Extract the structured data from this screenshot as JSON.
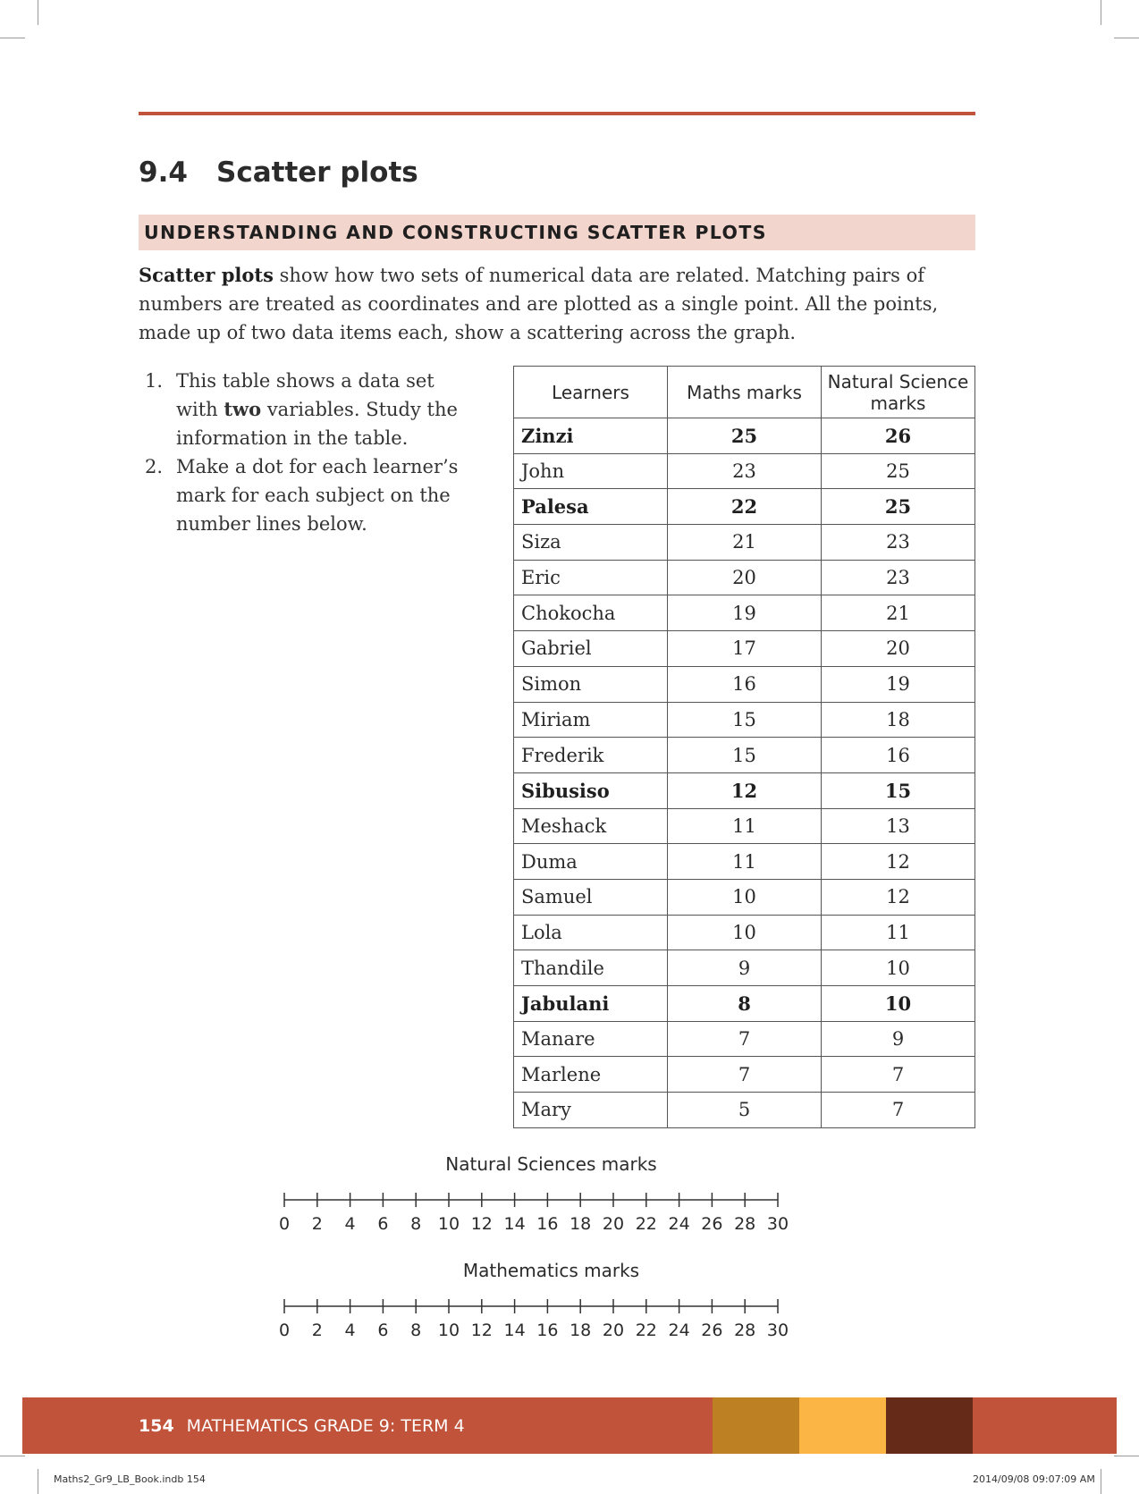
{
  "section": {
    "number": "9.4",
    "title": "Scatter plots"
  },
  "banner": "UNDERSTANDING AND CONSTRUCTING SCATTER PLOTS",
  "intro": {
    "term": "Scatter plots",
    "text": " show how two sets of numerical data are related. Matching pairs of numbers are treated as coordinates and are plotted as a single point. All the points, made up of two data items each, show a scattering across the graph."
  },
  "instructions": [
    {
      "num": "1.",
      "pre": "This table shows a data set with ",
      "bold": "two",
      "post": " variables. Study the information in the table."
    },
    {
      "num": "2.",
      "pre": "Make a dot for each learner’s mark for each subject on the number lines below.",
      "bold": "",
      "post": ""
    }
  ],
  "table": {
    "headers": [
      "Learners",
      "Maths marks",
      "Natural Science marks"
    ],
    "rows": [
      {
        "name": "Zinzi",
        "maths": "25",
        "science": "26",
        "bold": true
      },
      {
        "name": "John",
        "maths": "23",
        "science": "25",
        "bold": false
      },
      {
        "name": "Palesa",
        "maths": "22",
        "science": "25",
        "bold": true
      },
      {
        "name": "Siza",
        "maths": "21",
        "science": "23",
        "bold": false
      },
      {
        "name": "Eric",
        "maths": "20",
        "science": "23",
        "bold": false
      },
      {
        "name": "Chokocha",
        "maths": "19",
        "science": "21",
        "bold": false
      },
      {
        "name": "Gabriel",
        "maths": "17",
        "science": "20",
        "bold": false
      },
      {
        "name": "Simon",
        "maths": "16",
        "science": "19",
        "bold": false
      },
      {
        "name": "Miriam",
        "maths": "15",
        "science": "18",
        "bold": false
      },
      {
        "name": "Frederik",
        "maths": "15",
        "science": "16",
        "bold": false
      },
      {
        "name": "Sibusiso",
        "maths": "12",
        "science": "15",
        "bold": true
      },
      {
        "name": "Meshack",
        "maths": "11",
        "science": "13",
        "bold": false
      },
      {
        "name": "Duma",
        "maths": "11",
        "science": "12",
        "bold": false
      },
      {
        "name": "Samuel",
        "maths": "10",
        "science": "12",
        "bold": false
      },
      {
        "name": "Lola",
        "maths": "10",
        "science": "11",
        "bold": false
      },
      {
        "name": "Thandile",
        "maths": "9",
        "science": "10",
        "bold": false
      },
      {
        "name": "Jabulani",
        "maths": "8",
        "science": "10",
        "bold": true
      },
      {
        "name": "Manare",
        "maths": "7",
        "science": "9",
        "bold": false
      },
      {
        "name": "Marlene",
        "maths": "7",
        "science": "7",
        "bold": false
      },
      {
        "name": "Mary",
        "maths": "5",
        "science": "7",
        "bold": false
      }
    ]
  },
  "number_lines": [
    {
      "title": "Natural Sciences marks",
      "min": 0,
      "max": 30,
      "step": 2
    },
    {
      "title": "Mathematics marks",
      "min": 0,
      "max": 30,
      "step": 2
    }
  ],
  "footer": {
    "page": "154",
    "title": "MATHEMATICS GRADE 9: TERM 4",
    "colors": {
      "band": "#c0533a",
      "swatch1": "#bd8022",
      "swatch2": "#fbb544",
      "swatch3": "#662a18"
    }
  },
  "slug": {
    "left": "Maths2_Gr9_LB_Book.indb   154",
    "right": "2014/09/08   09:07:09 AM"
  }
}
